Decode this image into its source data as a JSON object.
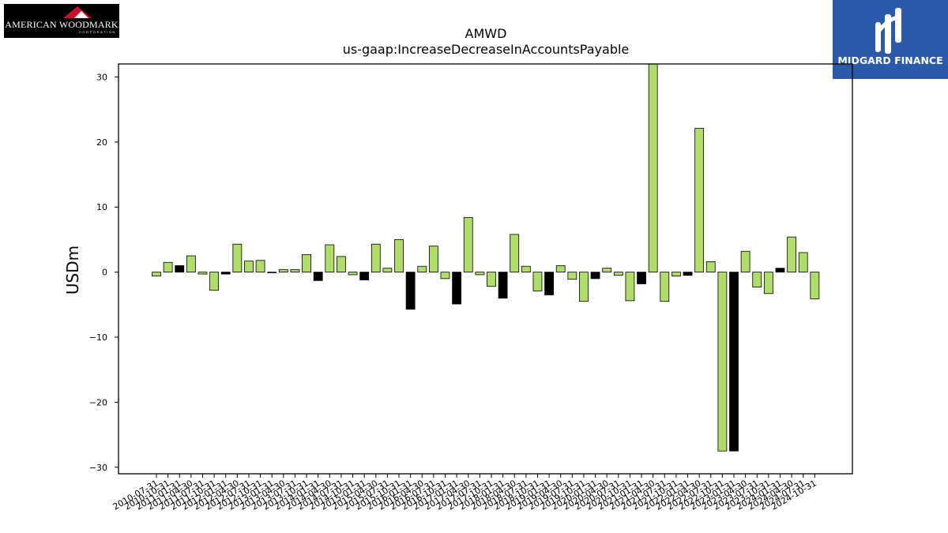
{
  "logos": {
    "left_text": "AMERICAN WOODMARK",
    "left_subtext": "CORPORATION",
    "right_text": "MIDGARD FINANCE"
  },
  "colors": {
    "bar_positive": "#b0dc6a",
    "bar_negative": "#000000",
    "edge": "#000000",
    "right_logo_bg": "#2b5aa8"
  },
  "chart_data": {
    "type": "bar",
    "title": "AMWD",
    "subtitle": "us-gaap:IncreaseDecreaseInAccountsPayable",
    "xlabel": "",
    "ylabel": "USDm",
    "ylim": [
      -31,
      32
    ],
    "yticks": [
      -30,
      -20,
      -10,
      0,
      10,
      20,
      30
    ],
    "ytick_labels": [
      "−30",
      "−20",
      "−10",
      "0",
      "10",
      "20",
      "30"
    ],
    "grid": false,
    "categories": [
      "2010-07-31",
      "2010-10-31",
      "2011-01-31",
      "2011-04-30",
      "2011-07-31",
      "2011-10-31",
      "2012-01-31",
      "2012-04-30",
      "2012-07-31",
      "2012-10-31",
      "2013-01-31",
      "2013-04-30",
      "2013-07-31",
      "2013-10-31",
      "2014-01-31",
      "2014-04-30",
      "2014-07-31",
      "2014-10-31",
      "2015-01-31",
      "2015-04-30",
      "2015-07-31",
      "2015-10-31",
      "2016-01-31",
      "2016-04-30",
      "2016-07-31",
      "2016-10-31",
      "2017-01-31",
      "2017-04-30",
      "2017-07-31",
      "2017-10-31",
      "2018-01-31",
      "2018-04-30",
      "2018-07-31",
      "2018-10-31",
      "2019-01-31",
      "2019-04-30",
      "2019-07-31",
      "2019-10-31",
      "2020-01-31",
      "2020-04-30",
      "2020-07-31",
      "2020-10-31",
      "2021-01-31",
      "2021-04-30",
      "2021-07-31",
      "2021-10-31",
      "2022-01-31",
      "2022-04-30",
      "2022-07-31",
      "2022-10-31",
      "2023-01-31",
      "2023-04-30",
      "2023-07-31",
      "2023-10-31",
      "2024-01-31",
      "2024-04-30",
      "2024-07-31",
      "2024-10-31"
    ],
    "values": [
      -0.6,
      1.5,
      1.0,
      2.5,
      -0.3,
      -2.8,
      -0.3,
      4.3,
      1.7,
      1.8,
      -0.1,
      0.4,
      0.4,
      2.7,
      -1.3,
      4.2,
      2.4,
      -0.4,
      -1.2,
      4.3,
      0.6,
      5.0,
      -5.7,
      0.9,
      4.0,
      -1.0,
      -4.9,
      8.4,
      -0.4,
      -2.2,
      -4.0,
      5.8,
      0.9,
      -2.9,
      -3.5,
      1.0,
      -1.1,
      -4.5,
      -1.0,
      0.6,
      -0.5,
      -4.4,
      -1.8,
      32.0,
      -4.5,
      -0.6,
      -0.5,
      22.1,
      1.6,
      -27.5,
      -27.5,
      3.2,
      -2.3,
      -3.3,
      0.6,
      5.4,
      3.0,
      -4.1
    ],
    "bar_colors": [
      "pos",
      "pos",
      "neg",
      "pos",
      "pos",
      "pos",
      "neg",
      "pos",
      "pos",
      "pos",
      "pos",
      "pos",
      "pos",
      "pos",
      "neg",
      "pos",
      "pos",
      "pos",
      "neg",
      "pos",
      "pos",
      "pos",
      "neg",
      "pos",
      "pos",
      "pos",
      "neg",
      "pos",
      "pos",
      "pos",
      "neg",
      "pos",
      "pos",
      "pos",
      "neg",
      "pos",
      "pos",
      "pos",
      "neg",
      "pos",
      "pos",
      "pos",
      "neg",
      "pos",
      "pos",
      "pos",
      "neg",
      "pos",
      "pos",
      "pos",
      "neg",
      "pos",
      "pos",
      "pos",
      "neg",
      "pos",
      "pos",
      "pos"
    ]
  }
}
